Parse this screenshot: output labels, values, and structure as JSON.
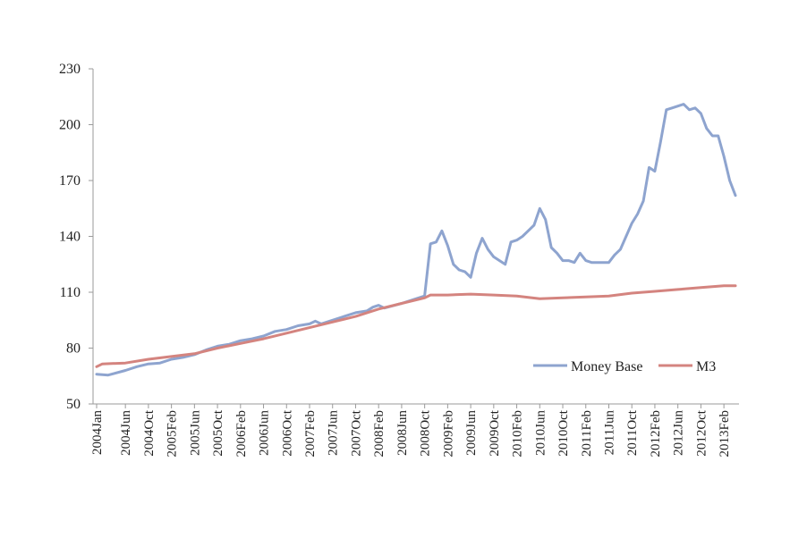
{
  "chart_data": {
    "type": "line",
    "title": "",
    "xlabel": "",
    "ylabel": "",
    "ylim": [
      50,
      230
    ],
    "yticks": [
      50,
      80,
      110,
      140,
      170,
      200,
      230
    ],
    "grid": false,
    "legend_position": "bottom-right",
    "x_tick_labels": [
      "2004Jan",
      "2004Jun",
      "2004Oct",
      "2005Feb",
      "2005Jun",
      "2005Oct",
      "2006Feb",
      "2006Jun",
      "2006Oct",
      "2007Feb",
      "2007Jun",
      "2007Oct",
      "2008Feb",
      "2008Jun",
      "2008Oct",
      "2009Feb",
      "2009Jun",
      "2009Oct",
      "2010Feb",
      "2010Jun",
      "2010Oct",
      "2011Feb",
      "2011Jun",
      "2011Oct",
      "2012Feb",
      "2012Jun",
      "2012Oct",
      "2013Feb"
    ],
    "series": [
      {
        "name": "Money Base",
        "color": "#8ea4cf",
        "points": [
          [
            "2004Jan",
            66
          ],
          [
            "2004Mar",
            65.5
          ],
          [
            "2004Jun",
            68
          ],
          [
            "2004Aug",
            70
          ],
          [
            "2004Oct",
            71.5
          ],
          [
            "2004Dec",
            72
          ],
          [
            "2005Feb",
            74
          ],
          [
            "2005Apr",
            75
          ],
          [
            "2005Jun",
            76.5
          ],
          [
            "2005Aug",
            79
          ],
          [
            "2005Oct",
            81
          ],
          [
            "2005Dec",
            82
          ],
          [
            "2006Feb",
            84
          ],
          [
            "2006Apr",
            85
          ],
          [
            "2006Jun",
            86.5
          ],
          [
            "2006Aug",
            89
          ],
          [
            "2006Oct",
            90
          ],
          [
            "2006Dec",
            92
          ],
          [
            "2007Feb",
            93
          ],
          [
            "2007Mar",
            94.5
          ],
          [
            "2007Apr",
            93
          ],
          [
            "2007Jun",
            95
          ],
          [
            "2007Aug",
            97
          ],
          [
            "2007Oct",
            99
          ],
          [
            "2007Dec",
            100
          ],
          [
            "2008Jan",
            102
          ],
          [
            "2008Feb",
            103
          ],
          [
            "2008Mar",
            101.5
          ],
          [
            "2008Jun",
            104
          ],
          [
            "2008Aug",
            106
          ],
          [
            "2008Oct",
            108
          ],
          [
            "2008Nov",
            136
          ],
          [
            "2008Dec",
            137
          ],
          [
            "2009Jan",
            143
          ],
          [
            "2009Feb",
            135
          ],
          [
            "2009Mar",
            125
          ],
          [
            "2009Apr",
            122
          ],
          [
            "2009May",
            121
          ],
          [
            "2009Jun",
            118
          ],
          [
            "2009Jul",
            131
          ],
          [
            "2009Aug",
            139
          ],
          [
            "2009Sep",
            133
          ],
          [
            "2009Oct",
            129
          ],
          [
            "2009Nov",
            127
          ],
          [
            "2009Dec",
            125
          ],
          [
            "2010Jan",
            137
          ],
          [
            "2010Feb",
            138
          ],
          [
            "2010Mar",
            140
          ],
          [
            "2010Apr",
            143
          ],
          [
            "2010May",
            146
          ],
          [
            "2010Jun",
            155
          ],
          [
            "2010Jul",
            149
          ],
          [
            "2010Aug",
            134
          ],
          [
            "2010Sep",
            131
          ],
          [
            "2010Oct",
            127
          ],
          [
            "2010Nov",
            127
          ],
          [
            "2010Dec",
            126
          ],
          [
            "2011Jan",
            131
          ],
          [
            "2011Feb",
            127
          ],
          [
            "2011Mar",
            126
          ],
          [
            "2011Apr",
            126
          ],
          [
            "2011May",
            126
          ],
          [
            "2011Jun",
            126
          ],
          [
            "2011Jul",
            130
          ],
          [
            "2011Aug",
            133
          ],
          [
            "2011Sep",
            140
          ],
          [
            "2011Oct",
            147
          ],
          [
            "2011Nov",
            152
          ],
          [
            "2011Dec",
            159
          ],
          [
            "2012Jan",
            177
          ],
          [
            "2012Feb",
            175
          ],
          [
            "2012Mar",
            191
          ],
          [
            "2012Apr",
            208
          ],
          [
            "2012May",
            209
          ],
          [
            "2012Jun",
            210
          ],
          [
            "2012Jul",
            211
          ],
          [
            "2012Aug",
            208
          ],
          [
            "2012Sep",
            209
          ],
          [
            "2012Oct",
            206
          ],
          [
            "2012Nov",
            198
          ],
          [
            "2012Dec",
            194
          ],
          [
            "2013Jan",
            194
          ],
          [
            "2013Feb",
            183
          ],
          [
            "2013Mar",
            170
          ],
          [
            "2013Apr",
            162
          ]
        ]
      },
      {
        "name": "M3",
        "color": "#d4847f",
        "points": [
          [
            "2004Jan",
            70
          ],
          [
            "2004Feb",
            71.5
          ],
          [
            "2004Jun",
            72
          ],
          [
            "2004Oct",
            74
          ],
          [
            "2005Feb",
            75.5
          ],
          [
            "2005Jun",
            77
          ],
          [
            "2005Oct",
            80
          ],
          [
            "2006Feb",
            82.5
          ],
          [
            "2006Jun",
            85
          ],
          [
            "2006Oct",
            88
          ],
          [
            "2007Feb",
            91
          ],
          [
            "2007Jun",
            94
          ],
          [
            "2007Oct",
            97
          ],
          [
            "2008Feb",
            101
          ],
          [
            "2008Jun",
            104
          ],
          [
            "2008Oct",
            107
          ],
          [
            "2008Nov",
            108.5
          ],
          [
            "2009Feb",
            108.5
          ],
          [
            "2009Jun",
            109
          ],
          [
            "2009Oct",
            108.5
          ],
          [
            "2010Feb",
            108
          ],
          [
            "2010Jun",
            106.5
          ],
          [
            "2010Oct",
            107
          ],
          [
            "2011Feb",
            107.5
          ],
          [
            "2011Jun",
            108
          ],
          [
            "2011Oct",
            109.5
          ],
          [
            "2012Feb",
            110.5
          ],
          [
            "2012Jun",
            111.5
          ],
          [
            "2012Oct",
            112.5
          ],
          [
            "2013Feb",
            113.5
          ],
          [
            "2013Apr",
            113.5
          ]
        ]
      }
    ]
  }
}
